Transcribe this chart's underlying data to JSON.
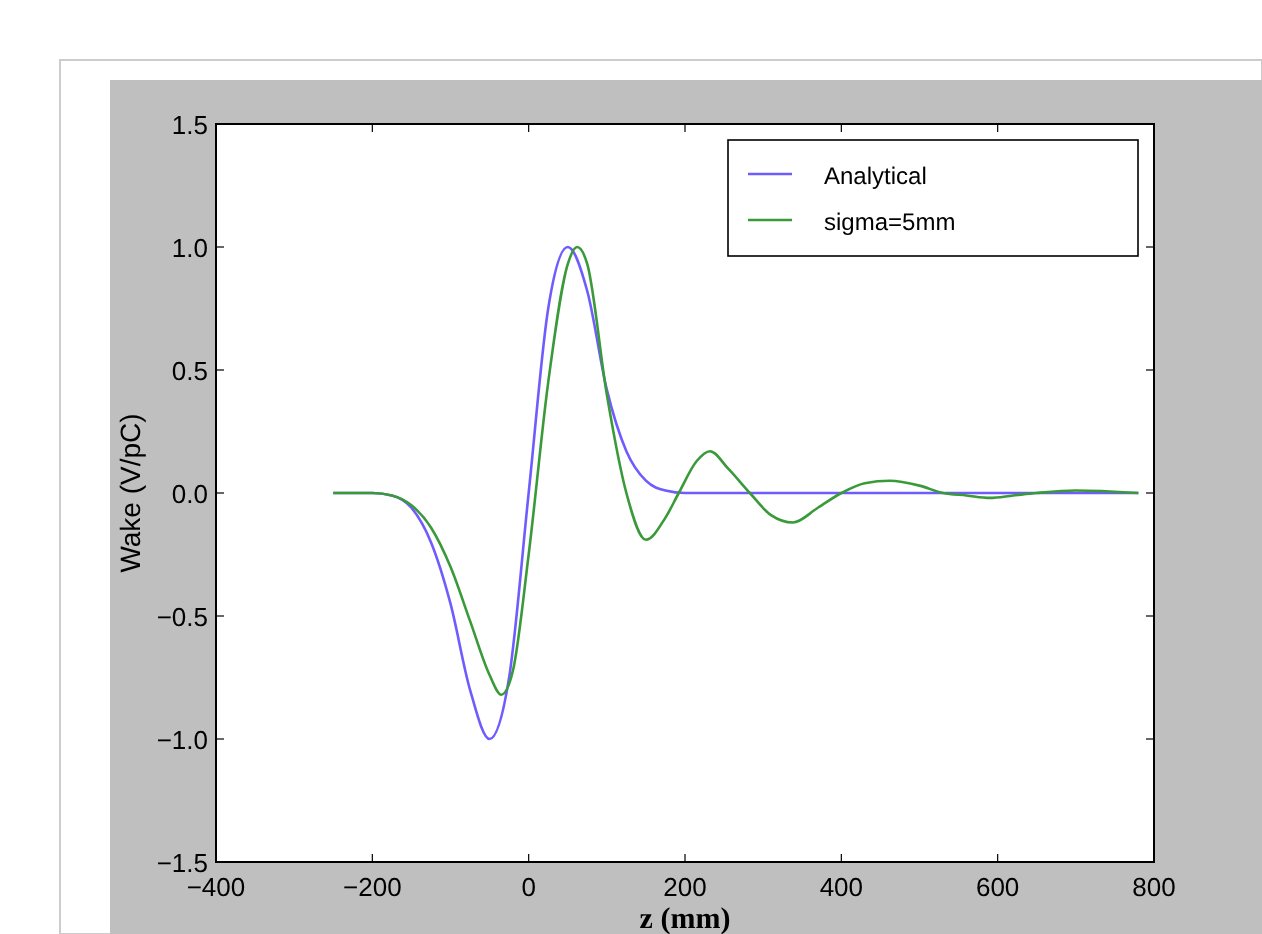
{
  "chart_data": {
    "type": "line",
    "xlabel": "z (mm)",
    "ylabel": "Wake (V/pC)",
    "xlim": [
      -400,
      800
    ],
    "ylim": [
      -1.5,
      1.5
    ],
    "xticks": [
      {
        "value": -400,
        "label": "−400"
      },
      {
        "value": -200,
        "label": "−200"
      },
      0,
      200,
      400,
      600,
      800
    ],
    "yticks": [
      {
        "value": -1.5,
        "label": "−1.5"
      },
      {
        "value": -1,
        "label": "−1.0"
      },
      {
        "value": -0.5,
        "label": "−0.5"
      },
      {
        "value": 0,
        "label": "0.0"
      },
      0.5,
      {
        "value": 1,
        "label": "1.0"
      },
      1.5
    ],
    "grid": false,
    "legend": "top right",
    "marker": "none",
    "line_style": "solid",
    "series": [
      {
        "name": "Analytical",
        "color": "#6f5cff",
        "x": [
          -250,
          -200,
          -175,
          -150,
          -125,
          -100,
          -75,
          -50,
          -25,
          0,
          25,
          50,
          75,
          100,
          125,
          150,
          175,
          200,
          300,
          400,
          500,
          600,
          700,
          780
        ],
        "values": [
          0,
          0,
          -0.01,
          -0.06,
          -0.2,
          -0.45,
          -0.8,
          -1.0,
          -0.75,
          0,
          0.75,
          1.0,
          0.82,
          0.42,
          0.17,
          0.05,
          0.01,
          0,
          0,
          0,
          0,
          0,
          0,
          0
        ]
      },
      {
        "name": "sigma=5mm",
        "color": "#3a9a3a",
        "x": [
          -250,
          -200,
          -175,
          -150,
          -125,
          -100,
          -75,
          -50,
          -35,
          -20,
          0,
          25,
          50,
          62,
          75,
          100,
          125,
          150,
          175,
          192,
          215,
          232,
          255,
          283,
          310,
          338,
          370,
          400,
          430,
          462,
          500,
          530,
          560,
          590,
          620,
          650,
          700,
          780
        ],
        "values": [
          0,
          0,
          -0.01,
          -0.05,
          -0.14,
          -0.3,
          -0.52,
          -0.74,
          -0.82,
          -0.72,
          -0.25,
          0.45,
          0.93,
          1.0,
          0.93,
          0.4,
          0,
          -0.19,
          -0.1,
          0,
          0.13,
          0.17,
          0.1,
          0,
          -0.09,
          -0.12,
          -0.06,
          0,
          0.04,
          0.05,
          0.03,
          0,
          -0.01,
          -0.02,
          -0.01,
          0,
          0.01,
          0
        ]
      }
    ]
  }
}
